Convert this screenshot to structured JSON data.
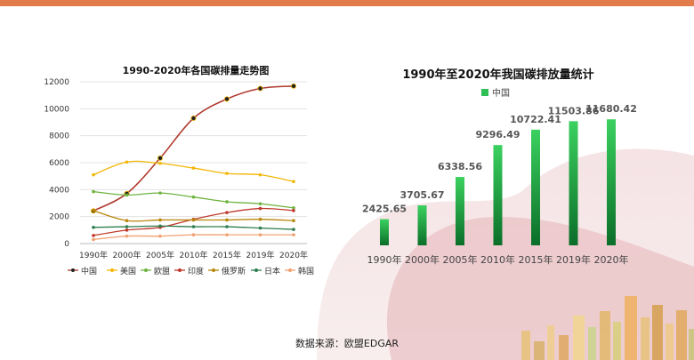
{
  "chart_data": [
    {
      "type": "line",
      "title": "1990-2020年各国碳排量走势图",
      "categories": [
        "1990年",
        "2000年",
        "2005年",
        "2010年",
        "2015年",
        "2019年",
        "2020年"
      ],
      "ylim": [
        0,
        12000
      ],
      "yticks": [
        "0",
        "2000",
        "4000",
        "6000",
        "8000",
        "10000",
        "12000"
      ],
      "legend_position": "bottom",
      "series": [
        {
          "name": "中国",
          "color": "#b03a2e",
          "values": [
            2425.65,
            3705.67,
            6338.56,
            9296.49,
            10722.41,
            11503.86,
            11680.42
          ]
        },
        {
          "name": "美国",
          "color": "#f2b705",
          "values": [
            5100,
            6050,
            5950,
            5600,
            5200,
            5100,
            4600
          ]
        },
        {
          "name": "欧盟",
          "color": "#6db33f",
          "values": [
            3850,
            3600,
            3750,
            3450,
            3100,
            2950,
            2650
          ]
        },
        {
          "name": "印度",
          "color": "#c0392b",
          "values": [
            600,
            1000,
            1200,
            1800,
            2300,
            2600,
            2450
          ]
        },
        {
          "name": "俄罗斯",
          "color": "#b8860b",
          "values": [
            2450,
            1700,
            1750,
            1750,
            1750,
            1800,
            1700
          ]
        },
        {
          "name": "日本",
          "color": "#2e7d4f",
          "values": [
            1200,
            1250,
            1300,
            1250,
            1250,
            1150,
            1050
          ]
        },
        {
          "name": "韩国",
          "color": "#f0a070",
          "values": [
            300,
            550,
            550,
            650,
            650,
            650,
            650
          ]
        }
      ]
    },
    {
      "type": "bar",
      "title": "1990年至2020年我国碳排放量统计",
      "legend": "中国",
      "legend_position": "top",
      "categories": [
        "1990年",
        "2000年",
        "2005年",
        "2010年",
        "2015年",
        "2019年",
        "2020年"
      ],
      "values": [
        2425.65,
        3705.67,
        6338.56,
        9296.49,
        10722.41,
        11503.86,
        11680.42
      ],
      "labels": [
        "2425.65",
        "3705.67",
        "6338.56",
        "9296.49",
        "10722.41",
        "11503.86",
        "11680.42"
      ],
      "ylim": [
        0,
        14500
      ]
    }
  ],
  "source": "数据来源：欧盟EDGAR",
  "colors": {
    "accent": "#e37c4b",
    "bar_top": "#33cc55",
    "bar_bottom": "#0e7a2e",
    "china_line": "#b03a2e"
  }
}
